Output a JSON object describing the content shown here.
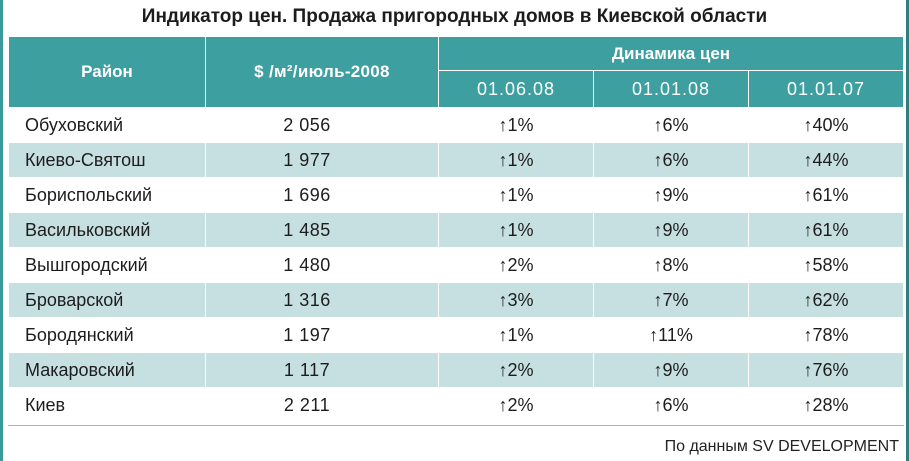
{
  "title": "Индикатор цен. Продажа пригородных домов в Киевской области",
  "headers": {
    "district": "Район",
    "price": "$ /м²/июль-2008",
    "dynamics": "Динамика цен",
    "dates": [
      "01.06.08",
      "01.01.08",
      "01.01.07"
    ]
  },
  "rows": [
    {
      "district": "Обуховский",
      "price": "2 056",
      "d1": "↑1%",
      "d2": "↑6%",
      "d3": "↑40%"
    },
    {
      "district": "Киево-Святош",
      "price": "1 977",
      "d1": "↑1%",
      "d2": "↑6%",
      "d3": "↑44%"
    },
    {
      "district": "Бориспольский",
      "price": "1 696",
      "d1": "↑1%",
      "d2": "↑9%",
      "d3": "↑61%"
    },
    {
      "district": "Васильковский",
      "price": "1 485",
      "d1": "↑1%",
      "d2": "↑9%",
      "d3": "↑61%"
    },
    {
      "district": "Вышгородский",
      "price": "1 480",
      "d1": "↑2%",
      "d2": "↑8%",
      "d3": "↑58%"
    },
    {
      "district": "Броварской",
      "price": "1 316",
      "d1": "↑3%",
      "d2": "↑7%",
      "d3": "↑62%"
    },
    {
      "district": "Бородянский",
      "price": "1 197",
      "d1": "↑1%",
      "d2": "↑11%",
      "d3": "↑78%"
    },
    {
      "district": "Макаровский",
      "price": "1 117",
      "d1": "↑2%",
      "d2": "↑9%",
      "d3": "↑76%"
    },
    {
      "district": "Киев",
      "price": "2 211",
      "d1": "↑2%",
      "d2": "↑6%",
      "d3": "↑28%"
    }
  ],
  "source": "По данным SV DEVELOPMENT",
  "colors": {
    "header_bg": "#3e9fa0",
    "stripe_bg": "#c6dfe0",
    "accent_bar": "#3a9a9a"
  }
}
